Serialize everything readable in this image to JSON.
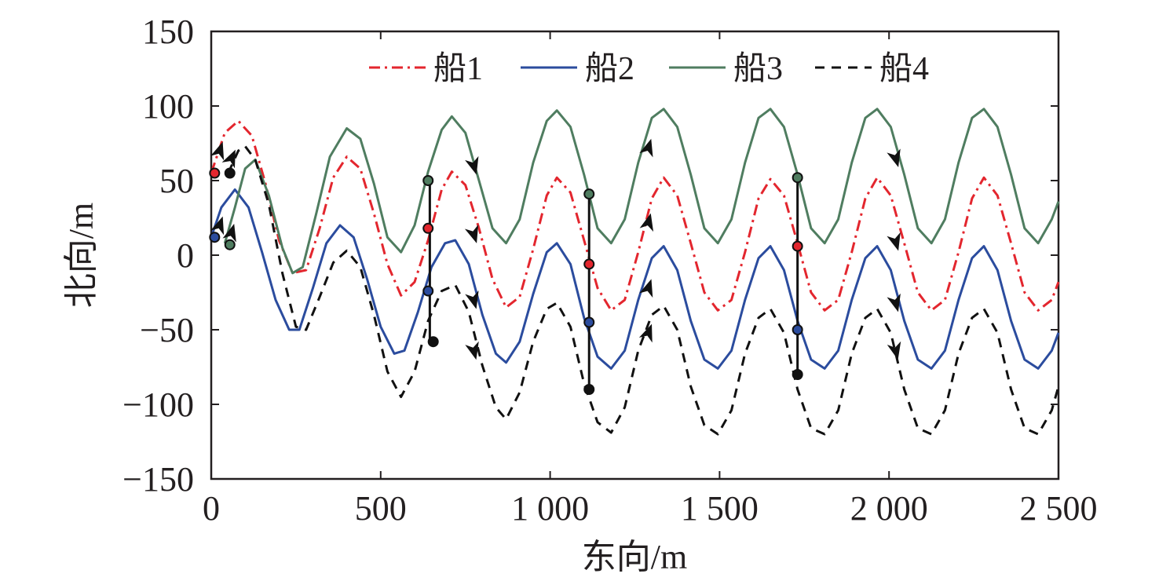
{
  "chart_data": {
    "type": "line",
    "title": "",
    "xlabel": "东向/m",
    "ylabel": "北向/m",
    "xlim": [
      0,
      2500
    ],
    "ylim": [
      -150,
      150
    ],
    "xticks": [
      0,
      500,
      1000,
      1500,
      2000,
      2500
    ],
    "xtick_labels": [
      "0",
      "500",
      "1 000",
      "1 500",
      "2 000",
      "2 500"
    ],
    "yticks": [
      150,
      100,
      50,
      0,
      -50,
      -100,
      -150
    ],
    "ytick_labels": [
      "150",
      "100",
      "50",
      "0",
      "−50",
      "−100",
      "−150"
    ],
    "grid": false,
    "legend": {
      "position": "top",
      "orientation": "horizontal"
    },
    "series": [
      {
        "name": "船1",
        "color": "#e3262e",
        "dash": "dashdot",
        "points": [
          [
            0,
            55
          ],
          [
            40,
            82
          ],
          [
            80,
            90
          ],
          [
            120,
            80
          ],
          [
            160,
            48
          ],
          [
            200,
            10
          ],
          [
            240,
            -12
          ],
          [
            280,
            -10
          ],
          [
            320,
            18
          ],
          [
            360,
            52
          ],
          [
            400,
            66
          ],
          [
            440,
            58
          ],
          [
            480,
            28
          ],
          [
            520,
            -6
          ],
          [
            560,
            -27
          ],
          [
            600,
            -18
          ],
          [
            640,
            10
          ],
          [
            680,
            44
          ],
          [
            710,
            56
          ],
          [
            750,
            47
          ],
          [
            790,
            18
          ],
          [
            830,
            -16
          ],
          [
            870,
            -35
          ],
          [
            910,
            -28
          ],
          [
            950,
            4
          ],
          [
            990,
            40
          ],
          [
            1020,
            52
          ],
          [
            1060,
            42
          ],
          [
            1100,
            10
          ],
          [
            1140,
            -22
          ],
          [
            1180,
            -37
          ],
          [
            1220,
            -30
          ],
          [
            1260,
            2
          ],
          [
            1300,
            38
          ],
          [
            1335,
            52
          ],
          [
            1375,
            40
          ],
          [
            1415,
            8
          ],
          [
            1455,
            -25
          ],
          [
            1495,
            -37
          ],
          [
            1535,
            -30
          ],
          [
            1575,
            2
          ],
          [
            1615,
            38
          ],
          [
            1650,
            51
          ],
          [
            1690,
            40
          ],
          [
            1730,
            8
          ],
          [
            1770,
            -25
          ],
          [
            1810,
            -37
          ],
          [
            1850,
            -30
          ],
          [
            1890,
            2
          ],
          [
            1930,
            38
          ],
          [
            1965,
            52
          ],
          [
            2005,
            40
          ],
          [
            2045,
            8
          ],
          [
            2085,
            -25
          ],
          [
            2125,
            -37
          ],
          [
            2165,
            -30
          ],
          [
            2205,
            2
          ],
          [
            2245,
            38
          ],
          [
            2280,
            52
          ],
          [
            2320,
            40
          ],
          [
            2360,
            8
          ],
          [
            2400,
            -25
          ],
          [
            2440,
            -37
          ],
          [
            2480,
            -30
          ],
          [
            2500,
            -18
          ]
        ],
        "start_marker": [
          10,
          55
        ],
        "direction_arrows": [
          [
            25,
            70
          ],
          [
            775,
            14
          ],
          [
            1290,
            22
          ],
          [
            2020,
            9
          ]
        ],
        "formation_points": [
          [
            640,
            18
          ],
          [
            1115,
            -6
          ],
          [
            1730,
            6
          ]
        ]
      },
      {
        "name": "船2",
        "color": "#2b4c9e",
        "dash": "solid",
        "points": [
          [
            0,
            12
          ],
          [
            30,
            32
          ],
          [
            70,
            44
          ],
          [
            110,
            32
          ],
          [
            150,
            2
          ],
          [
            190,
            -30
          ],
          [
            230,
            -50
          ],
          [
            260,
            -50
          ],
          [
            300,
            -22
          ],
          [
            340,
            8
          ],
          [
            380,
            20
          ],
          [
            420,
            12
          ],
          [
            460,
            -16
          ],
          [
            500,
            -48
          ],
          [
            540,
            -66
          ],
          [
            570,
            -64
          ],
          [
            610,
            -38
          ],
          [
            650,
            -8
          ],
          [
            690,
            8
          ],
          [
            720,
            10
          ],
          [
            760,
            -6
          ],
          [
            800,
            -40
          ],
          [
            840,
            -66
          ],
          [
            870,
            -72
          ],
          [
            910,
            -58
          ],
          [
            950,
            -26
          ],
          [
            990,
            2
          ],
          [
            1020,
            8
          ],
          [
            1060,
            -6
          ],
          [
            1100,
            -42
          ],
          [
            1140,
            -68
          ],
          [
            1180,
            -76
          ],
          [
            1220,
            -64
          ],
          [
            1260,
            -30
          ],
          [
            1300,
            -2
          ],
          [
            1335,
            6
          ],
          [
            1375,
            -10
          ],
          [
            1415,
            -44
          ],
          [
            1455,
            -70
          ],
          [
            1495,
            -76
          ],
          [
            1535,
            -64
          ],
          [
            1575,
            -30
          ],
          [
            1615,
            -2
          ],
          [
            1650,
            6
          ],
          [
            1690,
            -10
          ],
          [
            1730,
            -44
          ],
          [
            1770,
            -70
          ],
          [
            1810,
            -76
          ],
          [
            1850,
            -64
          ],
          [
            1890,
            -30
          ],
          [
            1930,
            -2
          ],
          [
            1965,
            6
          ],
          [
            2005,
            -10
          ],
          [
            2045,
            -44
          ],
          [
            2085,
            -70
          ],
          [
            2125,
            -76
          ],
          [
            2165,
            -64
          ],
          [
            2205,
            -30
          ],
          [
            2245,
            -2
          ],
          [
            2280,
            6
          ],
          [
            2320,
            -10
          ],
          [
            2360,
            -44
          ],
          [
            2400,
            -70
          ],
          [
            2440,
            -76
          ],
          [
            2480,
            -64
          ],
          [
            2500,
            -52
          ]
        ],
        "start_marker": [
          10,
          12
        ],
        "direction_arrows": [
          [
            25,
            20
          ],
          [
            775,
            -30
          ],
          [
            1290,
            -22
          ],
          [
            2020,
            -32
          ]
        ],
        "formation_points": [
          [
            640,
            -24
          ],
          [
            1115,
            -45
          ],
          [
            1730,
            -50
          ]
        ]
      },
      {
        "name": "船3",
        "color": "#4f7d60",
        "dash": "solid",
        "points": [
          [
            40,
            8
          ],
          [
            70,
            32
          ],
          [
            100,
            58
          ],
          [
            130,
            64
          ],
          [
            170,
            40
          ],
          [
            210,
            5
          ],
          [
            240,
            -12
          ],
          [
            270,
            -8
          ],
          [
            310,
            28
          ],
          [
            350,
            66
          ],
          [
            400,
            85
          ],
          [
            440,
            78
          ],
          [
            480,
            48
          ],
          [
            520,
            12
          ],
          [
            560,
            2
          ],
          [
            600,
            20
          ],
          [
            640,
            56
          ],
          [
            680,
            84
          ],
          [
            710,
            93
          ],
          [
            750,
            82
          ],
          [
            790,
            50
          ],
          [
            830,
            18
          ],
          [
            870,
            8
          ],
          [
            910,
            24
          ],
          [
            950,
            62
          ],
          [
            990,
            90
          ],
          [
            1020,
            97
          ],
          [
            1060,
            86
          ],
          [
            1100,
            54
          ],
          [
            1140,
            18
          ],
          [
            1180,
            8
          ],
          [
            1220,
            24
          ],
          [
            1260,
            62
          ],
          [
            1300,
            92
          ],
          [
            1335,
            98
          ],
          [
            1375,
            86
          ],
          [
            1415,
            54
          ],
          [
            1455,
            18
          ],
          [
            1495,
            8
          ],
          [
            1535,
            24
          ],
          [
            1575,
            62
          ],
          [
            1615,
            92
          ],
          [
            1650,
            98
          ],
          [
            1690,
            86
          ],
          [
            1730,
            54
          ],
          [
            1770,
            18
          ],
          [
            1810,
            8
          ],
          [
            1850,
            24
          ],
          [
            1890,
            62
          ],
          [
            1930,
            92
          ],
          [
            1965,
            98
          ],
          [
            2005,
            86
          ],
          [
            2045,
            54
          ],
          [
            2085,
            18
          ],
          [
            2125,
            8
          ],
          [
            2165,
            24
          ],
          [
            2205,
            62
          ],
          [
            2245,
            92
          ],
          [
            2280,
            98
          ],
          [
            2320,
            86
          ],
          [
            2360,
            54
          ],
          [
            2400,
            18
          ],
          [
            2440,
            8
          ],
          [
            2480,
            24
          ],
          [
            2500,
            36
          ]
        ],
        "start_marker": [
          55,
          7
        ],
        "direction_arrows": [
          [
            60,
            15
          ],
          [
            775,
            60
          ],
          [
            1290,
            72
          ],
          [
            2020,
            65
          ]
        ],
        "formation_points": [
          [
            640,
            50
          ],
          [
            1115,
            41
          ],
          [
            1730,
            52
          ]
        ]
      },
      {
        "name": "船4",
        "color": "#111111",
        "dash": "dashed",
        "points": [
          [
            50,
            55
          ],
          [
            80,
            70
          ],
          [
            100,
            73
          ],
          [
            130,
            64
          ],
          [
            170,
            34
          ],
          [
            210,
            -12
          ],
          [
            250,
            -48
          ],
          [
            280,
            -50
          ],
          [
            320,
            -28
          ],
          [
            360,
            -5
          ],
          [
            400,
            3
          ],
          [
            440,
            -8
          ],
          [
            480,
            -40
          ],
          [
            520,
            -78
          ],
          [
            560,
            -95
          ],
          [
            600,
            -78
          ],
          [
            640,
            -44
          ],
          [
            680,
            -24
          ],
          [
            720,
            -20
          ],
          [
            760,
            -38
          ],
          [
            800,
            -74
          ],
          [
            840,
            -102
          ],
          [
            870,
            -110
          ],
          [
            910,
            -92
          ],
          [
            950,
            -58
          ],
          [
            990,
            -36
          ],
          [
            1020,
            -32
          ],
          [
            1060,
            -48
          ],
          [
            1100,
            -86
          ],
          [
            1140,
            -112
          ],
          [
            1180,
            -119
          ],
          [
            1220,
            -102
          ],
          [
            1260,
            -64
          ],
          [
            1300,
            -40
          ],
          [
            1335,
            -34
          ],
          [
            1375,
            -50
          ],
          [
            1415,
            -88
          ],
          [
            1455,
            -114
          ],
          [
            1495,
            -120
          ],
          [
            1535,
            -104
          ],
          [
            1575,
            -66
          ],
          [
            1615,
            -42
          ],
          [
            1650,
            -36
          ],
          [
            1690,
            -52
          ],
          [
            1730,
            -90
          ],
          [
            1770,
            -116
          ],
          [
            1810,
            -120
          ],
          [
            1850,
            -104
          ],
          [
            1890,
            -66
          ],
          [
            1930,
            -42
          ],
          [
            1965,
            -36
          ],
          [
            2005,
            -52
          ],
          [
            2045,
            -90
          ],
          [
            2085,
            -116
          ],
          [
            2125,
            -120
          ],
          [
            2165,
            -104
          ],
          [
            2205,
            -66
          ],
          [
            2245,
            -42
          ],
          [
            2280,
            -36
          ],
          [
            2320,
            -52
          ],
          [
            2360,
            -90
          ],
          [
            2400,
            -116
          ],
          [
            2440,
            -120
          ],
          [
            2480,
            -104
          ],
          [
            2500,
            -88
          ]
        ],
        "start_marker": [
          55,
          55
        ],
        "direction_arrows": [
          [
            60,
            65
          ],
          [
            775,
            -64
          ],
          [
            1290,
            -52
          ],
          [
            2020,
            -64
          ]
        ],
        "formation_points": [
          [
            655,
            -58
          ],
          [
            1115,
            -90
          ],
          [
            1730,
            -80
          ]
        ]
      }
    ],
    "formation_lines": [
      {
        "x": 645,
        "ytop": 50,
        "ybottom": -58
      },
      {
        "x": 1115,
        "ytop": 41,
        "ybottom": -90
      },
      {
        "x": 1730,
        "ytop": 52,
        "ybottom": -80
      }
    ]
  }
}
